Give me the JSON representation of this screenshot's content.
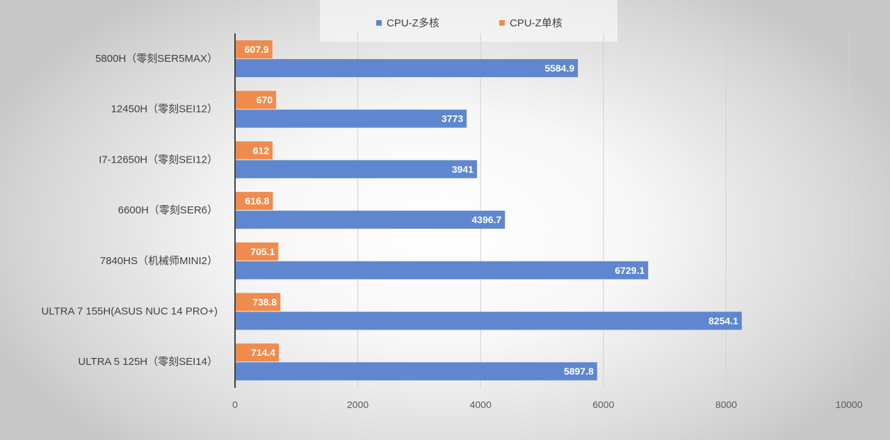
{
  "chart_data": {
    "type": "bar",
    "orientation": "horizontal",
    "title": "",
    "xlabel": "",
    "ylabel": "",
    "xlim": [
      0,
      10000
    ],
    "xticks": [
      0,
      2000,
      4000,
      6000,
      8000,
      10000
    ],
    "grid": true,
    "legend_position": "top",
    "categories": [
      "5800H（零刻SER5MAX）",
      "12450H（零刻SEI12）",
      "I7-12650H（零刻SEI12）",
      "6600H（零刻SER6）",
      "7840HS（机械师MINI2）",
      "ULTRA 7 155H(ASUS NUC 14 PRO+)",
      "ULTRA 5 125H（零刻SEI14）"
    ],
    "series": [
      {
        "name": "CPU-Z单核",
        "color": "#ef8c4d",
        "values": [
          607.9,
          670,
          612,
          616.8,
          705.1,
          738.8,
          714.4
        ],
        "labels": [
          "607.9",
          "670",
          "612",
          "616.8",
          "705.1",
          "738.8",
          "714.4"
        ]
      },
      {
        "name": "CPU-Z多核",
        "color": "#5f87cf",
        "values": [
          5584.9,
          3773,
          3941,
          4396.7,
          6729.1,
          8254.1,
          5897.8
        ],
        "labels": [
          "5584.9",
          "3773",
          "3941",
          "4396.7",
          "6729.1",
          "8254.1",
          "5897.8"
        ]
      }
    ],
    "legend": [
      {
        "name": "CPU-Z多核",
        "color": "#5f87cf"
      },
      {
        "name": "CPU-Z单核",
        "color": "#ef8c4d"
      }
    ]
  }
}
